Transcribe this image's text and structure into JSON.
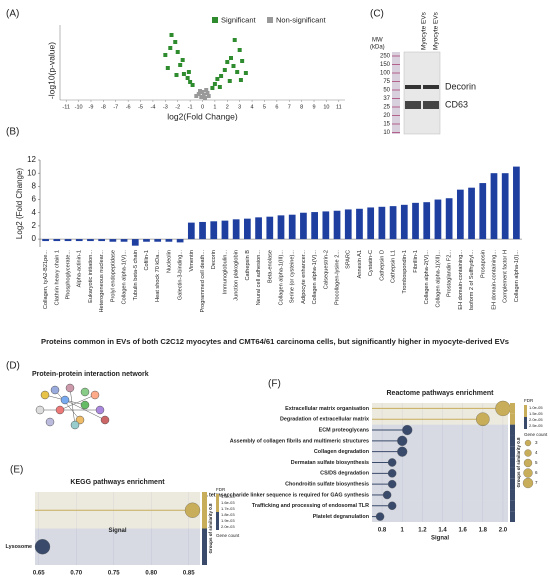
{
  "panels": {
    "a": "(A)",
    "b": "(B)",
    "c": "(C)",
    "d": "(D)",
    "e": "(E)",
    "f": "(F)"
  },
  "headline": "Proteins common in EVs of both C2C12 myocytes and CMT64/61 carcinoma cells, but significantly higher in myocyte-derived EVs",
  "blot": {
    "mw_title": "MW",
    "mw_unit": "(kDa)",
    "lanes": [
      "Myocyte EVs",
      "Myocyte EVs"
    ],
    "markers": [
      "250",
      "150",
      "100",
      "75",
      "50",
      "37",
      "25",
      "20",
      "15",
      "10"
    ],
    "bands": [
      "Decorin",
      "CD63"
    ]
  },
  "network": {
    "title": "Protein-protein interaction network"
  },
  "chart_data": [
    {
      "type": "scatter",
      "xlabel": "log2(Fold Change)",
      "ylabel": "-log10(p-value)",
      "xlim": [
        -11.5,
        11.5
      ],
      "ylim": [
        0,
        7.5
      ],
      "xticks": [
        -11,
        -10,
        -9,
        -8,
        -7,
        -6,
        -5,
        -4,
        -3,
        -2,
        -1,
        0,
        1,
        2,
        3,
        4,
        5,
        6,
        7,
        8,
        9,
        10,
        11
      ],
      "series": [
        {
          "name": "Significant",
          "color": "#2e8b2e",
          "x": [
            -3,
            -2.8,
            -2.5,
            -2.2,
            -2,
            -1.8,
            -1.5,
            -1.2,
            -1,
            -0.8,
            -2.6,
            -1.6,
            -1.1,
            0.8,
            1,
            1.2,
            1.5,
            1.8,
            2,
            2.3,
            2.5,
            2.8,
            3,
            3.2,
            3.5,
            2.2,
            1.4,
            2.6,
            3.1,
            -2.1
          ],
          "values": [
            4.5,
            3.2,
            6.5,
            5.8,
            4.8,
            3.5,
            2.6,
            2.2,
            1.8,
            1.5,
            5.2,
            4,
            2.8,
            1.2,
            1.6,
            2.1,
            2.4,
            3,
            3.8,
            4.2,
            3.4,
            2.8,
            5,
            3.9,
            2.7,
            1.9,
            1.3,
            6,
            2,
            2.5
          ]
        },
        {
          "name": "Non-significant",
          "color": "#999999",
          "x": [
            -0.5,
            -0.3,
            -0.1,
            0,
            0.1,
            0.2,
            0.4,
            0.5,
            -0.2,
            0.3
          ],
          "values": [
            0.4,
            0.6,
            0.3,
            0.8,
            0.5,
            0.2,
            0.7,
            0.4,
            0.9,
            1
          ]
        }
      ]
    },
    {
      "type": "bar",
      "ylabel": "Log2 (Fold Change)",
      "color": "#1f3fa0",
      "ylim": [
        -1.2,
        12
      ],
      "yticks": [
        0,
        2,
        4,
        6,
        8,
        10,
        12
      ],
      "categories": [
        "Collagen, tyA2-B21pe...",
        "Clathrin heavy chain 1",
        "Phosphoglycerate...",
        "Alpha-actinin-1",
        "Eukaryotic initiation...",
        "Heterogeneous nuclear...",
        "Prolyl endopeptidase",
        "Collagen alpha-1(V)...",
        "Tubulin beta-5 chain",
        "Cofilin-1",
        "Heat shock 70 kDa...",
        "Nucleolin",
        "Galectin-3-binding...",
        "Vimentin",
        "Programmed cell death...",
        "Decorin",
        "Immunoglobulin...",
        "Junction plakoglobin",
        "Cathepsin B",
        "Neural cell adhesion...",
        "Beta-enolase",
        "Collagen alpha-1(III)...",
        "Serine (or cysteine)...",
        "Adipocyte enhancer...",
        "Collagen alpha-1(V)...",
        "Calsequestrin-2",
        "Procollagen-lysine 2...",
        "SPARC",
        "Annexin A1",
        "Cystatin-C",
        "Cathepsin D",
        "Cathepsin L1",
        "Trombospondin-1",
        "Fibrillin-1",
        "Collagen alpha-2(V)...",
        "Collagen alpha-1(XII)...",
        "Prostaglandin F2...",
        "EH domain-containing...",
        "Isoform 2 of Sulfhydryl...",
        "Prosaposin",
        "EH domain-containing...",
        "Complement factor H",
        "Collagen alpha-1(I)..."
      ],
      "values": [
        -0.3,
        -0.3,
        -0.3,
        -0.3,
        -0.3,
        -0.3,
        -0.4,
        -0.4,
        -1,
        -0.4,
        -0.4,
        -0.4,
        -0.5,
        2.5,
        2.6,
        2.7,
        2.8,
        3,
        3.1,
        3.3,
        3.4,
        3.6,
        3.7,
        4,
        4.1,
        4.2,
        4.3,
        4.5,
        4.6,
        4.8,
        4.9,
        5,
        5.2,
        5.5,
        5.6,
        6,
        6.2,
        7.5,
        7.8,
        8.5,
        10,
        10,
        11
      ]
    },
    {
      "type": "dot",
      "title": "Reactome pathways enrichment",
      "xlabel": "Signal",
      "xlim": [
        0.7,
        2.05
      ],
      "xticks": [
        0.8,
        1,
        1.2,
        1.4,
        1.6,
        1.8,
        {
          "value": 2,
          "label": "2.0"
        }
      ],
      "categories": [
        "Extracellular matrix organisation",
        "Degradation of extracellular matrix",
        "ECM proteoglycans",
        "Assembly of collagen fibrils and multimeric structures",
        "Collagen degradation",
        "Dermatan sulfate biosynthesis",
        "CS/DS degradation",
        "Chondroitin sulfate biosynthesis",
        "A tetrasaccharide linker sequence is required for GAG synthesis",
        "Trafficking and processing of endosomal TLR",
        "Platelet degranulation"
      ],
      "values": [
        2,
        1.8,
        1.05,
        1,
        1,
        0.9,
        0.9,
        0.9,
        0.85,
        0.9,
        0.78
      ],
      "sizes": [
        7,
        6,
        4,
        4,
        4,
        3,
        3,
        3,
        3,
        3,
        3
      ],
      "colors": [
        "#c8ad5a",
        "#c8ad5a",
        "#3a4a6b",
        "#3a4a6b",
        "#3a4a6b",
        "#3a4a6b",
        "#3a4a6b",
        "#3a4a6b",
        "#3a4a6b",
        "#3a4a6b",
        "#3a4a6b"
      ],
      "fdr_title": "FDR",
      "fdr_labels": [
        "1.0e-05",
        "1.5e-05",
        "2.0e-05",
        "2.5e-05"
      ],
      "size_title": "Gene count",
      "size_values": [
        3,
        4,
        5,
        6,
        7
      ],
      "group_label": "Groups of similarity 0.8"
    },
    {
      "type": "dot",
      "title": "KEGG pathways enrichment",
      "xlabel": "Signal",
      "xlim": [
        0.645,
        0.865
      ],
      "xticks": [
        0.65,
        {
          "value": 0.7,
          "label": "0.70"
        },
        0.75,
        {
          "value": 0.8,
          "label": "0.80"
        },
        0.85
      ],
      "categories": [
        null,
        "Lysosome"
      ],
      "values": [
        0.855,
        0.655
      ],
      "sizes": [
        6,
        6
      ],
      "colors": [
        "#c8ad5a",
        "#3a4a6b"
      ],
      "fdr_title": "FDR",
      "fdr_labels": [
        "1.5e-03",
        "1.6e-03",
        "1.7e-03",
        "1.8e-03",
        "1.9e-03",
        "2.0e-03"
      ],
      "size_title": "Gene count",
      "size_values": [],
      "group_label": "Groups of similarity 0.8"
    }
  ]
}
